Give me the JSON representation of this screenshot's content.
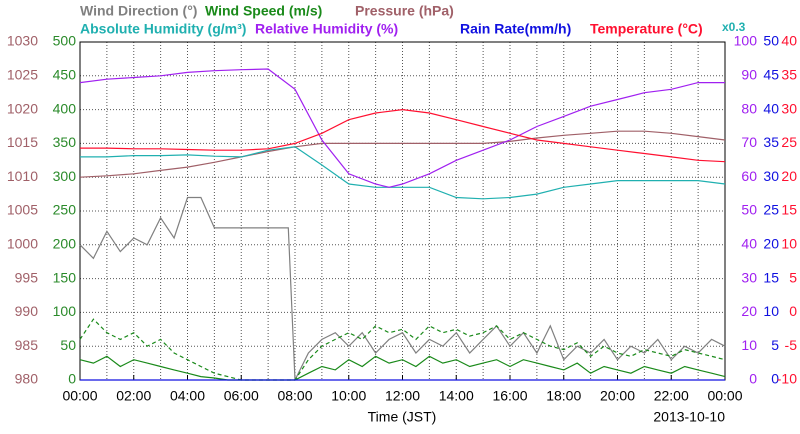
{
  "chart_data": {
    "type": "line",
    "xlabel": "Time (JST)",
    "date": "2013-10-10",
    "xlim": [
      0,
      24
    ],
    "xticks": [
      {
        "value": 0,
        "label": "00:00"
      },
      {
        "value": 2,
        "label": "02:00"
      },
      {
        "value": 4,
        "label": "04:00"
      },
      {
        "value": 6,
        "label": "06:00"
      },
      {
        "value": 8,
        "label": "08:00"
      },
      {
        "value": 10,
        "label": "10:00"
      },
      {
        "value": 12,
        "label": "12:00"
      },
      {
        "value": 14,
        "label": "14:00"
      },
      {
        "value": 16,
        "label": "16:00"
      },
      {
        "value": 18,
        "label": "18:00"
      },
      {
        "value": 20,
        "label": "20:00"
      },
      {
        "value": 22,
        "label": "22:00"
      },
      {
        "value": 24,
        "label": "00:00"
      }
    ],
    "xminorticks": [
      1,
      3,
      5,
      7,
      9,
      11,
      13,
      15,
      17,
      19,
      21,
      23
    ],
    "grid": true,
    "scale_label": "x0.3",
    "axes": [
      {
        "side": "left",
        "color": "#a06068",
        "lim": [
          980,
          1030
        ],
        "ticks": [
          980,
          985,
          990,
          995,
          1000,
          1005,
          1010,
          1015,
          1020,
          1025,
          1030
        ]
      },
      {
        "side": "left",
        "color": "#2a8a2a",
        "lim": [
          0,
          500
        ],
        "ticks": [
          0,
          50,
          100,
          150,
          200,
          250,
          300,
          350,
          400,
          450,
          500
        ]
      },
      {
        "side": "right",
        "color": "#a020f0",
        "lim": [
          0,
          100
        ],
        "ticks": [
          0,
          10,
          20,
          30,
          40,
          50,
          60,
          70,
          80,
          90,
          100
        ]
      },
      {
        "side": "right",
        "color": "#1010e0",
        "lim": [
          0,
          50
        ],
        "ticks": [
          0,
          5,
          10,
          15,
          20,
          25,
          30,
          35,
          40,
          45,
          50
        ]
      },
      {
        "side": "right",
        "color": "#ff1030",
        "lim": [
          -10,
          40
        ],
        "ticks": [
          -10,
          -5,
          0,
          5,
          10,
          15,
          20,
          25,
          30,
          35,
          40
        ]
      }
    ],
    "series": [
      {
        "name": "Wind Direction (°)",
        "color": "#808080",
        "axis": 1,
        "legend_row": 0,
        "x": [
          0,
          0.5,
          1,
          1.5,
          2,
          2.5,
          3,
          3.5,
          4,
          4.5,
          5,
          5.5,
          6,
          6.5,
          7,
          7.5,
          7.75,
          8,
          8.5,
          9,
          9.5,
          10,
          10.5,
          11,
          11.5,
          12,
          12.5,
          13,
          13.5,
          14,
          14.5,
          15,
          15.5,
          16,
          16.5,
          17,
          17.5,
          18,
          18.5,
          19,
          19.5,
          20,
          20.5,
          21,
          21.5,
          22,
          22.5,
          23,
          23.5,
          24
        ],
        "values": [
          200,
          180,
          220,
          190,
          210,
          200,
          240,
          210,
          270,
          270,
          225,
          225,
          225,
          225,
          225,
          225,
          225,
          0,
          40,
          60,
          70,
          50,
          70,
          40,
          60,
          70,
          40,
          60,
          50,
          70,
          40,
          60,
          80,
          50,
          70,
          40,
          80,
          30,
          50,
          40,
          60,
          30,
          50,
          40,
          60,
          30,
          50,
          40,
          60,
          50
        ]
      },
      {
        "name": "Wind Speed (m/s)",
        "color": "#1a8a1a",
        "axis": 1,
        "legend_row": 0,
        "x": [
          0,
          0.5,
          1,
          1.5,
          2,
          2.5,
          3,
          3.5,
          4,
          4.5,
          5,
          5.5,
          6,
          7,
          8,
          8.5,
          9,
          9.5,
          10,
          10.5,
          11,
          11.5,
          12,
          12.5,
          13,
          13.5,
          14,
          14.5,
          15,
          15.5,
          16,
          16.5,
          17,
          17.5,
          18,
          18.5,
          19,
          19.5,
          20,
          20.5,
          21,
          21.5,
          22,
          22.5,
          23,
          23.5,
          24
        ],
        "values": [
          30,
          25,
          35,
          20,
          30,
          25,
          20,
          15,
          10,
          5,
          3,
          0,
          0,
          0,
          0,
          10,
          20,
          15,
          30,
          20,
          35,
          25,
          30,
          20,
          35,
          25,
          30,
          20,
          25,
          30,
          20,
          30,
          25,
          20,
          15,
          25,
          10,
          20,
          15,
          10,
          20,
          15,
          10,
          20,
          15,
          10,
          5
        ]
      },
      {
        "color": "#1a8a1a",
        "axis": 1,
        "dashed": true,
        "x": [
          0,
          0.5,
          1,
          1.5,
          2,
          2.5,
          3,
          3.5,
          4,
          4.5,
          5,
          5.5,
          6,
          8,
          8.5,
          9,
          9.5,
          10,
          10.5,
          11,
          11.5,
          12,
          12.5,
          13,
          13.5,
          14,
          14.5,
          15,
          15.5,
          16,
          16.5,
          17,
          17.5,
          18,
          18.5,
          19,
          19.5,
          20,
          20.5,
          21,
          21.5,
          22,
          22.5,
          23,
          23.5,
          24
        ],
        "values": [
          60,
          90,
          70,
          60,
          70,
          50,
          60,
          40,
          30,
          20,
          10,
          5,
          0,
          0,
          30,
          50,
          60,
          70,
          60,
          80,
          70,
          75,
          60,
          80,
          70,
          75,
          65,
          70,
          80,
          60,
          70,
          60,
          50,
          45,
          55,
          35,
          50,
          40,
          35,
          45,
          40,
          35,
          45,
          40,
          35,
          30
        ]
      },
      {
        "name": "Pressure (hPa)",
        "color": "#a06068",
        "axis": 0,
        "legend_row": 0,
        "x": [
          0,
          1,
          2,
          3,
          4,
          5,
          6,
          7,
          8,
          9,
          10,
          11,
          12,
          13,
          14,
          15,
          16,
          17,
          18,
          19,
          20,
          21,
          22,
          23,
          24
        ],
        "values": [
          1010,
          1010.2,
          1010.5,
          1011,
          1011.5,
          1012.2,
          1013,
          1013.8,
          1014.5,
          1015,
          1015,
          1015,
          1015,
          1015,
          1015,
          1015,
          1015.3,
          1015.8,
          1016.2,
          1016.5,
          1016.8,
          1016.8,
          1016.5,
          1016,
          1015.5
        ]
      },
      {
        "name": "Absolute Humidity (g/m³)",
        "color": "#20b0b0",
        "axis": 3,
        "legend_row": 1,
        "x": [
          0,
          1,
          2,
          3,
          4,
          5,
          6,
          7,
          8,
          9,
          10,
          11,
          12,
          13,
          14,
          15,
          16,
          17,
          18,
          19,
          20,
          21,
          22,
          23,
          24
        ],
        "values": [
          33,
          33,
          33.2,
          33.2,
          33.3,
          33.1,
          33,
          34,
          34.5,
          31.8,
          29,
          28.5,
          28.5,
          28.5,
          27,
          26.8,
          27,
          27.5,
          28.5,
          29,
          29.5,
          29.5,
          29.5,
          29.5,
          29
        ]
      },
      {
        "name": "Relative Humidity (%)",
        "color": "#a020f0",
        "axis": 2,
        "legend_row": 1,
        "x": [
          0,
          1,
          2,
          3,
          4,
          5,
          6,
          7,
          8,
          9,
          10,
          11,
          11.5,
          12,
          13,
          14,
          15,
          16,
          17,
          18,
          19,
          20,
          21,
          22,
          23,
          24
        ],
        "values": [
          88,
          89,
          89.5,
          90,
          91,
          91.5,
          91.8,
          92,
          86,
          71,
          61,
          58,
          57,
          58,
          61,
          65,
          68,
          71,
          75,
          78,
          81,
          83,
          85,
          86,
          88,
          88
        ]
      },
      {
        "name": "Rain Rate(mm/h)",
        "color": "#1010e0",
        "axis": 3,
        "legend_row": 1,
        "x": [
          0,
          24
        ],
        "values": [
          0,
          0
        ]
      },
      {
        "name": "Temperature (°C)",
        "color": "#ff1030",
        "axis": 4,
        "legend_row": 1,
        "x": [
          0,
          1,
          2,
          3,
          4,
          5,
          6,
          7,
          8,
          9,
          10,
          11,
          12,
          13,
          14,
          15,
          16,
          17,
          18,
          19,
          20,
          21,
          22,
          23,
          24
        ],
        "values": [
          24.3,
          24.3,
          24.2,
          24.2,
          24.1,
          24,
          24,
          24.2,
          25,
          26.5,
          28.5,
          29.5,
          30,
          29.5,
          28.5,
          27.5,
          26.5,
          25.5,
          25,
          24.5,
          24,
          23.5,
          23,
          22.5,
          22.3
        ]
      }
    ]
  }
}
